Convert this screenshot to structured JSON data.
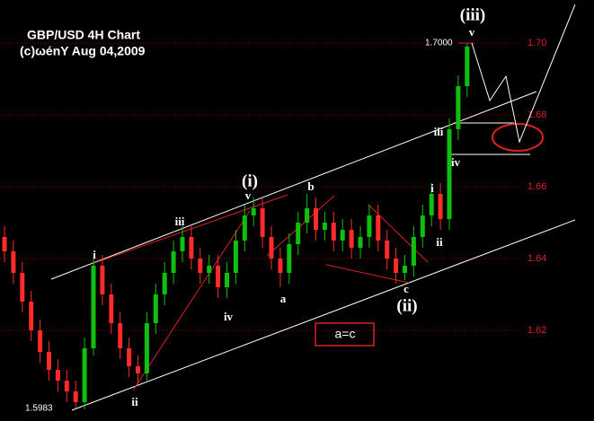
{
  "chart_data": {
    "type": "candlestick",
    "title": "GBP/USD 4H Chart",
    "subtitle": "(c)ωénY  Aug 04,2009",
    "open": [
      1.646,
      1.642,
      1.636,
      1.628,
      1.62,
      1.614,
      1.609,
      1.606,
      1.603,
      1.6,
      1.615,
      1.638,
      1.63,
      1.622,
      1.615,
      1.61,
      1.608,
      1.622,
      1.63,
      1.636,
      1.642,
      1.646,
      1.64,
      1.636,
      1.638,
      1.632,
      1.636,
      1.645,
      1.652,
      1.654,
      1.646,
      1.64,
      1.636,
      1.644,
      1.65,
      1.654,
      1.648,
      1.65,
      1.645,
      1.648,
      1.643,
      1.646,
      1.652,
      1.645,
      1.64,
      1.636,
      1.638,
      1.646,
      1.652,
      1.658,
      1.651,
      1.676,
      1.688
    ],
    "high": [
      1.649,
      1.645,
      1.639,
      1.631,
      1.623,
      1.617,
      1.612,
      1.609,
      1.606,
      1.618,
      1.64,
      1.641,
      1.633,
      1.625,
      1.618,
      1.613,
      1.625,
      1.633,
      1.639,
      1.645,
      1.649,
      1.649,
      1.643,
      1.641,
      1.641,
      1.639,
      1.648,
      1.655,
      1.657,
      1.657,
      1.649,
      1.643,
      1.647,
      1.653,
      1.658,
      1.657,
      1.653,
      1.653,
      1.651,
      1.651,
      1.649,
      1.655,
      1.655,
      1.648,
      1.643,
      1.641,
      1.649,
      1.655,
      1.661,
      1.661,
      1.679,
      1.691,
      1.7
    ],
    "low": [
      1.639,
      1.633,
      1.625,
      1.617,
      1.611,
      1.606,
      1.603,
      1.6,
      1.5983,
      1.598,
      1.613,
      1.627,
      1.619,
      1.612,
      1.607,
      1.605,
      1.606,
      1.619,
      1.627,
      1.633,
      1.639,
      1.637,
      1.633,
      1.633,
      1.629,
      1.629,
      1.633,
      1.642,
      1.649,
      1.643,
      1.637,
      1.632,
      1.633,
      1.641,
      1.647,
      1.645,
      1.645,
      1.642,
      1.642,
      1.64,
      1.64,
      1.643,
      1.642,
      1.637,
      1.633,
      1.634,
      1.635,
      1.643,
      1.649,
      1.648,
      1.648,
      1.673,
      1.685
    ],
    "close": [
      1.642,
      1.636,
      1.628,
      1.62,
      1.614,
      1.609,
      1.606,
      1.603,
      1.6,
      1.615,
      1.638,
      1.63,
      1.622,
      1.615,
      1.61,
      1.608,
      1.622,
      1.63,
      1.636,
      1.642,
      1.646,
      1.64,
      1.636,
      1.638,
      1.632,
      1.636,
      1.645,
      1.652,
      1.654,
      1.646,
      1.64,
      1.636,
      1.644,
      1.65,
      1.654,
      1.648,
      1.65,
      1.645,
      1.648,
      1.643,
      1.646,
      1.652,
      1.645,
      1.64,
      1.636,
      1.638,
      1.646,
      1.652,
      1.658,
      1.651,
      1.676,
      1.688,
      1.699
    ],
    "up_color": "#10c010",
    "down_color": "#ff2a2a",
    "ylim": [
      1.59475,
      1.712
    ],
    "yticks": [
      1.62,
      1.64,
      1.66,
      1.68,
      {
        "value": 1.7,
        "label": "1.70"
      }
    ],
    "grid": true,
    "price_labels": [
      {
        "value": 1.7,
        "label": "1.7000"
      },
      {
        "value": 1.5983,
        "label": "1.5983"
      }
    ],
    "annotations": [
      "(i)",
      "v",
      "iii",
      "i",
      "ii",
      "iv",
      "a",
      "b",
      "c",
      "(ii)",
      "i",
      "ii",
      "iii",
      "iv",
      "(iii)",
      "v",
      "a=c"
    ]
  }
}
